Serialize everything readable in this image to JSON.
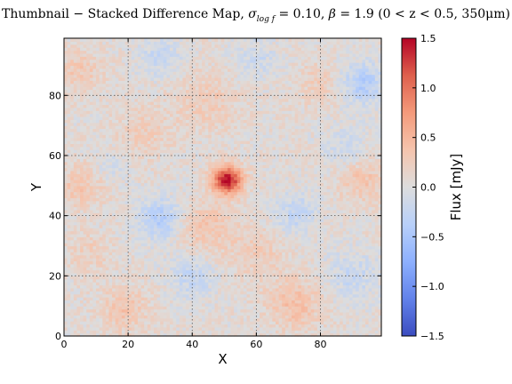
{
  "chart_data": {
    "type": "heatmap",
    "title_parts": {
      "prefix": "Thumbnail − Stacked Difference Map,",
      "sigma_symbol": "σ",
      "sigma_sub": "log f",
      "sigma_value": "= 0.10,",
      "beta_symbol": "β",
      "beta_value": "= 1.9",
      "z_range": "(0 < z < 0.5,",
      "wavelength": "350μm)"
    },
    "xlabel": "X",
    "ylabel": "Y",
    "colorbar_label": "Flux [mJy]",
    "colormap": "coolwarm",
    "grid": true,
    "grid_color": "#555555",
    "grid_style": "dotted",
    "xlim": [
      0,
      99
    ],
    "ylim": [
      0,
      99
    ],
    "clim": [
      -1.5,
      1.5
    ],
    "x_ticks": [
      {
        "value": 0,
        "label": "0"
      },
      {
        "value": 20,
        "label": "20"
      },
      {
        "value": 40,
        "label": "40"
      },
      {
        "value": 60,
        "label": "60"
      },
      {
        "value": 80,
        "label": "80"
      }
    ],
    "y_ticks": [
      {
        "value": 0,
        "label": "0"
      },
      {
        "value": 20,
        "label": "20"
      },
      {
        "value": 40,
        "label": "40"
      },
      {
        "value": 60,
        "label": "60"
      },
      {
        "value": 80,
        "label": "80"
      }
    ],
    "colorbar_ticks": [
      {
        "value": 1.5,
        "label": "1.5"
      },
      {
        "value": 1.0,
        "label": "1.0"
      },
      {
        "value": 0.5,
        "label": "0.5"
      },
      {
        "value": 0.0,
        "label": "0.0"
      },
      {
        "value": -0.5,
        "label": "−0.5"
      },
      {
        "value": -1.0,
        "label": "−1.0"
      },
      {
        "value": -1.5,
        "label": "−1.5"
      }
    ],
    "grid_size": 99,
    "baseline_flux": 0.05,
    "noise_amplitude": 0.16,
    "features": [
      {
        "kind": "peak",
        "x": 51,
        "y": 52,
        "amplitude": 1.45,
        "sigma": 3.2
      },
      {
        "kind": "blob",
        "x": 72,
        "y": 11,
        "amplitude": 0.35,
        "sigma": 6
      },
      {
        "kind": "blob",
        "x": 19,
        "y": 9,
        "amplitude": 0.3,
        "sigma": 5
      },
      {
        "kind": "blob",
        "x": 44,
        "y": 36,
        "amplitude": 0.3,
        "sigma": 6
      },
      {
        "kind": "blob",
        "x": 5,
        "y": 50,
        "amplitude": 0.28,
        "sigma": 5
      },
      {
        "kind": "blob",
        "x": 93,
        "y": 52,
        "amplitude": 0.3,
        "sigma": 5
      },
      {
        "kind": "blob",
        "x": 45,
        "y": 78,
        "amplitude": 0.22,
        "sigma": 7
      },
      {
        "kind": "blob",
        "x": 25,
        "y": 68,
        "amplitude": 0.2,
        "sigma": 6
      },
      {
        "kind": "blob",
        "x": 80,
        "y": 84,
        "amplitude": 0.2,
        "sigma": 5
      },
      {
        "kind": "blob",
        "x": 5,
        "y": 88,
        "amplitude": 0.25,
        "sigma": 5
      },
      {
        "kind": "blob",
        "x": 60,
        "y": 28,
        "amplitude": 0.22,
        "sigma": 6
      },
      {
        "kind": "blob",
        "x": 8,
        "y": 28,
        "amplitude": 0.18,
        "sigma": 5
      },
      {
        "kind": "blob",
        "x": 30,
        "y": 39,
        "amplitude": -0.45,
        "sigma": 5
      },
      {
        "kind": "blob",
        "x": 93,
        "y": 84,
        "amplitude": -0.45,
        "sigma": 5
      },
      {
        "kind": "blob",
        "x": 40,
        "y": 20,
        "amplitude": -0.3,
        "sigma": 5
      },
      {
        "kind": "blob",
        "x": 72,
        "y": 41,
        "amplitude": -0.3,
        "sigma": 5
      },
      {
        "kind": "blob",
        "x": 90,
        "y": 20,
        "amplitude": -0.25,
        "sigma": 6
      },
      {
        "kind": "blob",
        "x": 30,
        "y": 93,
        "amplitude": -0.25,
        "sigma": 5
      },
      {
        "kind": "blob",
        "x": 60,
        "y": 92,
        "amplitude": -0.2,
        "sigma": 5
      },
      {
        "kind": "blob",
        "x": 88,
        "y": 63,
        "amplitude": -0.2,
        "sigma": 5
      },
      {
        "kind": "blob",
        "x": 15,
        "y": 57,
        "amplitude": -0.15,
        "sigma": 4
      }
    ]
  }
}
